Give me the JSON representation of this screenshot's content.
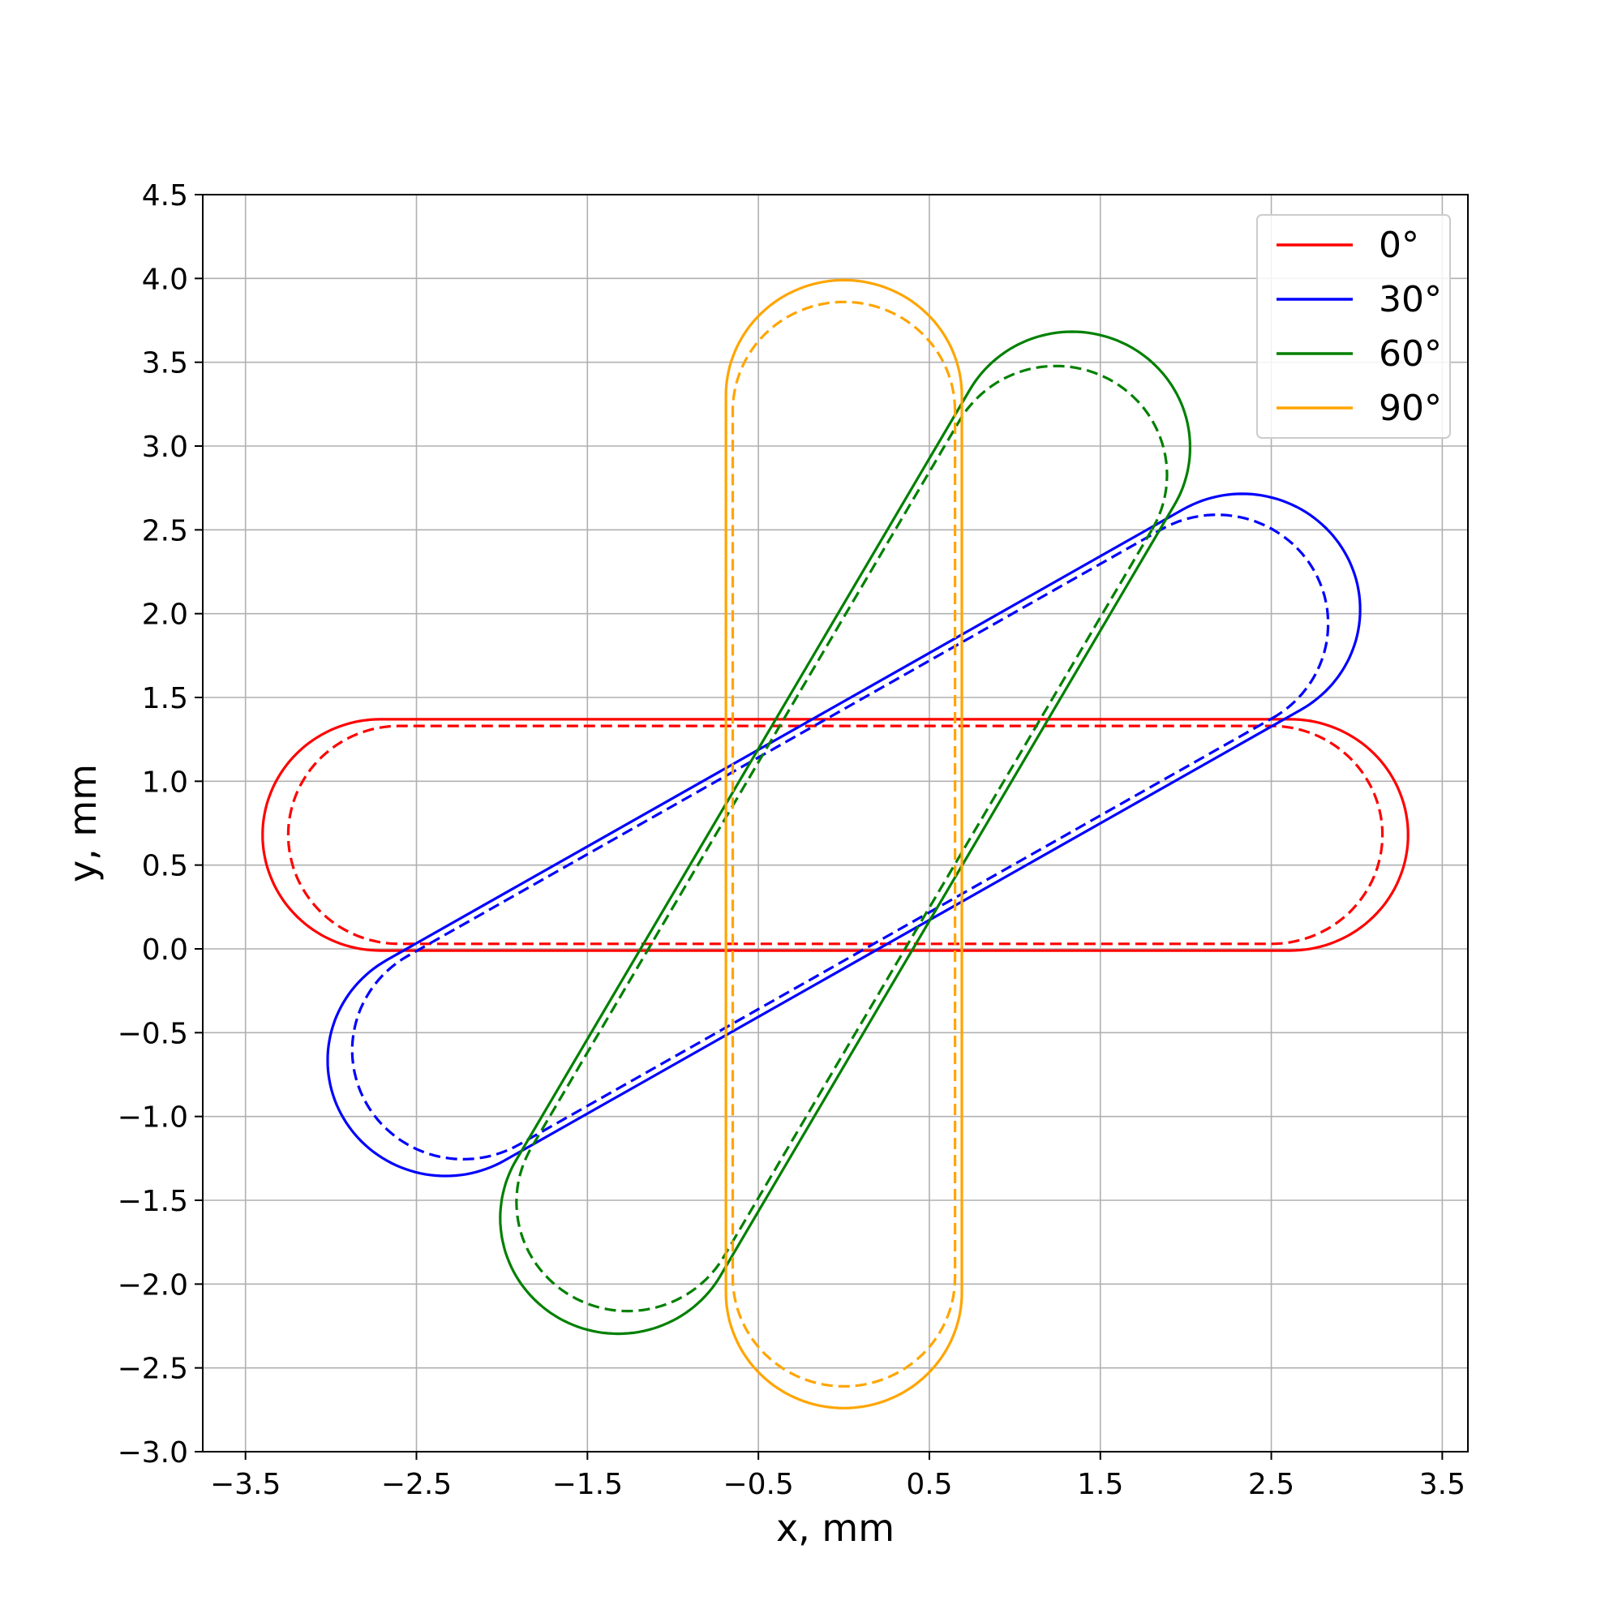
{
  "chart_data": {
    "type": "line",
    "title": "",
    "xlabel": "x, mm",
    "ylabel": "y, mm",
    "xlim": [
      -3.75,
      3.65
    ],
    "ylim": [
      -3.0,
      4.5
    ],
    "xticks": [
      -3.5,
      -2.5,
      -1.5,
      -0.5,
      0.5,
      1.5,
      2.5,
      3.5
    ],
    "xtick_labels": [
      "−3.5",
      "−2.5",
      "−1.5",
      "−0.5",
      "0.5",
      "1.5",
      "2.5",
      "3.5"
    ],
    "yticks": [
      -3.0,
      -2.5,
      -2.0,
      -1.5,
      -1.0,
      -0.5,
      0.0,
      0.5,
      1.0,
      1.5,
      2.0,
      2.5,
      3.0,
      3.5,
      4.0,
      4.5
    ],
    "ytick_labels": [
      "−3.0",
      "−2.5",
      "−2.0",
      "−1.5",
      "−1.0",
      "−0.5",
      "0.0",
      "0.5",
      "1.0",
      "1.5",
      "2.0",
      "2.5",
      "3.0",
      "3.5",
      "4.0",
      "4.5"
    ],
    "grid": true,
    "legend_position": "top-right",
    "pivot": [
      0.0,
      0.68
    ],
    "series": [
      {
        "name": "0°",
        "color": "#ff0000",
        "angle_deg": 0,
        "solid": {
          "far_end": 3.3,
          "near_end": -3.4,
          "half_width": 0.69
        },
        "dashed": {
          "far_end": 3.15,
          "near_end": -3.25,
          "half_width": 0.65
        }
      },
      {
        "name": "30°",
        "color": "#0000ff",
        "angle_deg": 30,
        "solid": {
          "far_end": 3.38,
          "near_end": -3.38,
          "half_width": 0.69
        },
        "dashed": {
          "far_end": 3.17,
          "near_end": -3.22,
          "half_width": 0.65
        }
      },
      {
        "name": "60°",
        "color": "#008000",
        "angle_deg": 60,
        "solid": {
          "far_end": 3.36,
          "near_end": -3.33,
          "half_width": 0.69
        },
        "dashed": {
          "far_end": 3.13,
          "near_end": -3.18,
          "half_width": 0.65
        }
      },
      {
        "name": "90°",
        "color": "#ffa500",
        "angle_deg": 90,
        "solid": {
          "far_end": 3.31,
          "near_end": -3.42,
          "half_width": 0.69
        },
        "dashed": {
          "far_end": 3.18,
          "near_end": -3.29,
          "half_width": 0.65
        }
      }
    ]
  }
}
